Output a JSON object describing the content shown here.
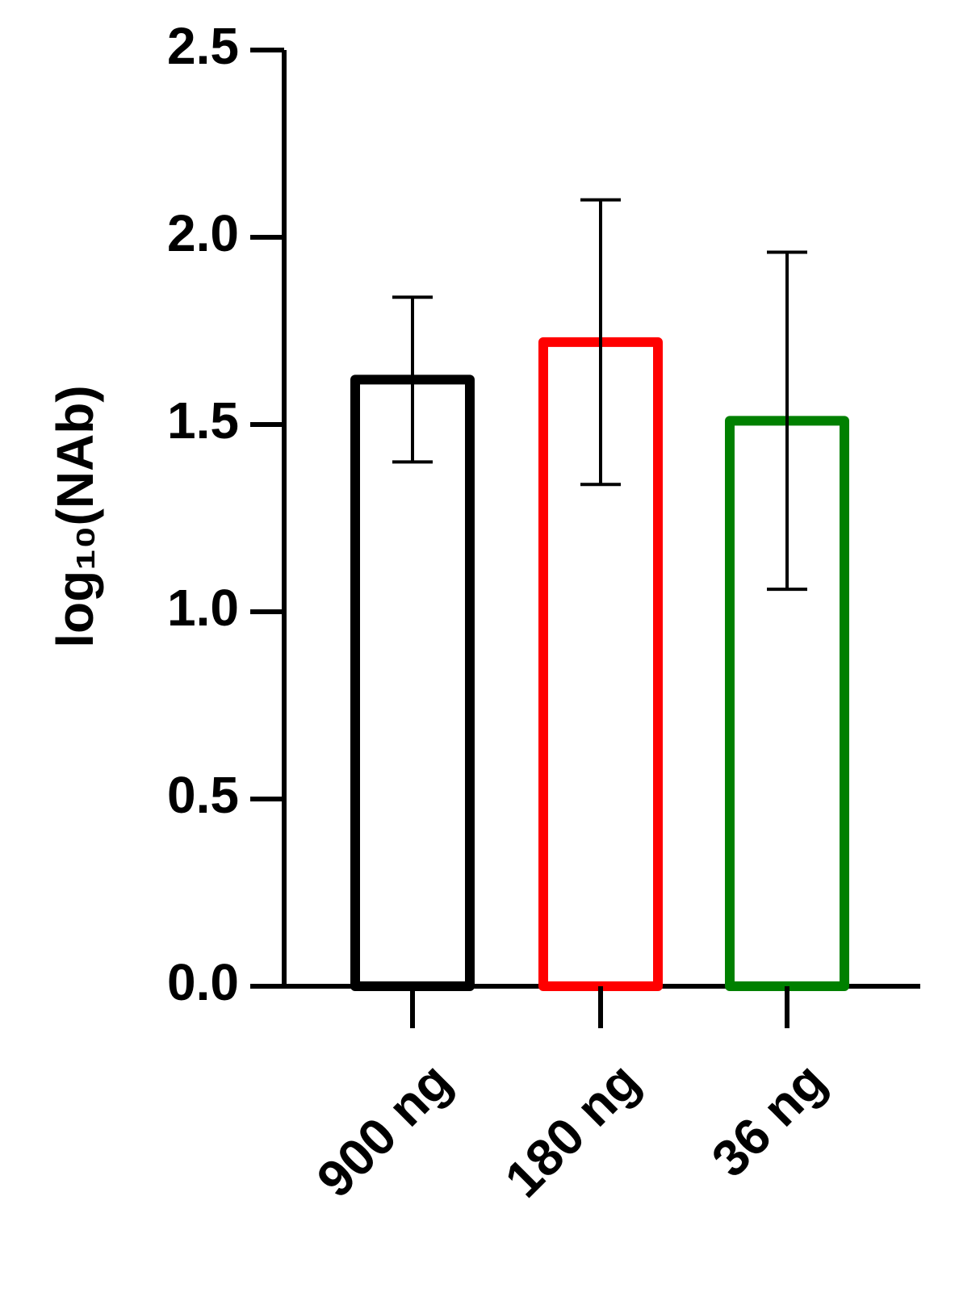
{
  "chart_data": {
    "type": "bar",
    "y_label": "log₁₀(NAb)",
    "categories": [
      "900 ng",
      "180 ng",
      "36 ng"
    ],
    "values": [
      1.62,
      1.72,
      1.51
    ],
    "errors": [
      0.22,
      0.38,
      0.45
    ],
    "colors": [
      "#000000",
      "#ff0000",
      "#008000"
    ],
    "ylim": [
      0,
      2.5
    ],
    "yticks": [
      {
        "value": 0,
        "label": "0.0"
      },
      0.5,
      {
        "value": 1,
        "label": "1.0"
      },
      1.5,
      {
        "value": 2,
        "label": "2.0"
      },
      2.5
    ]
  }
}
